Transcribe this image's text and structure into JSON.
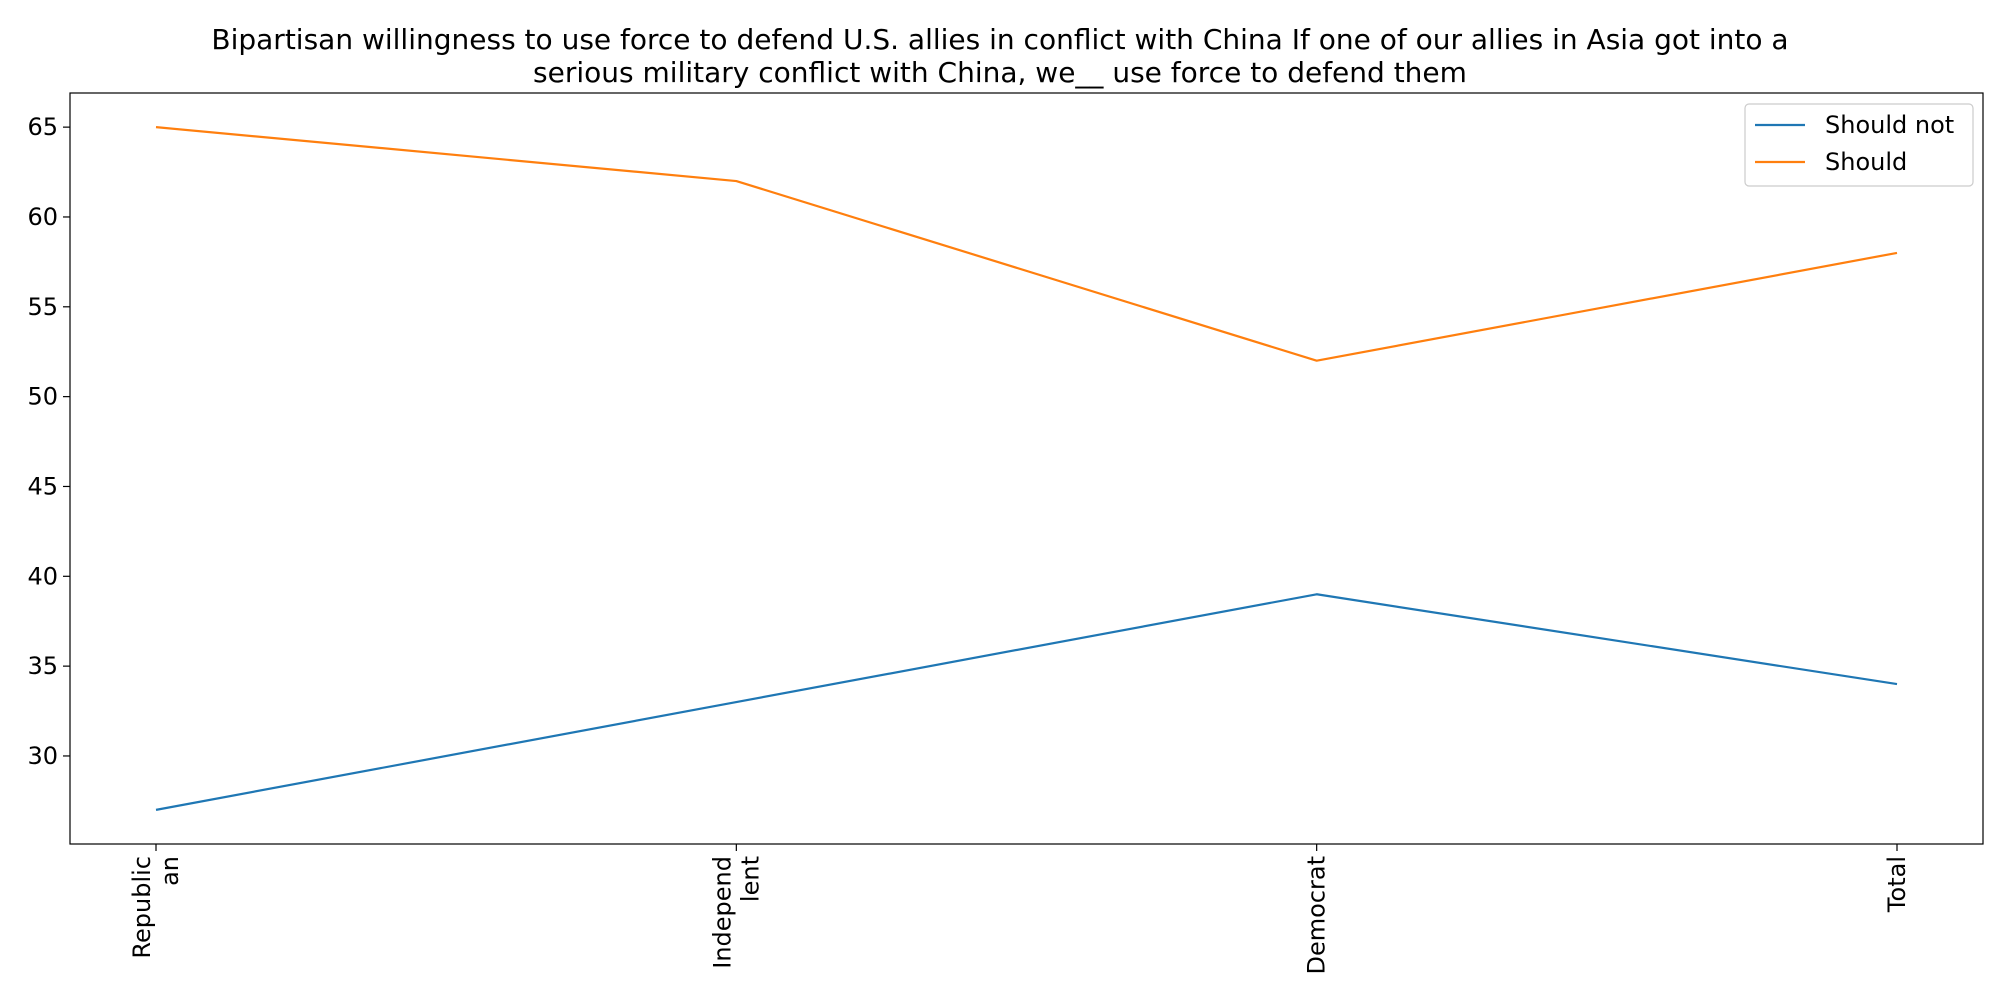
{
  "chart_data": {
    "type": "line",
    "title": "Bipartisan willingness to use force to defend U.S. allies in conflict with China If one of our allies in Asia got into a serious military conflict with China, we__ use force to defend them",
    "title_lines": [
      "Bipartisan willingness to use force to defend U.S. allies in conflict with China If one of our allies in Asia got into a",
      "serious military conflict with China, we__ use force to defend them"
    ],
    "xlabel": "",
    "ylabel": "",
    "categories": [
      "Republican",
      "Independent",
      "Democrat",
      "Total"
    ],
    "category_tick_lines": [
      [
        "Republic",
        "an"
      ],
      [
        "Independ",
        "lent"
      ],
      [
        "Democrat"
      ],
      [
        "Total"
      ]
    ],
    "series": [
      {
        "name": "Should not",
        "values": [
          27,
          33,
          39,
          34
        ],
        "color": "#1f77b4"
      },
      {
        "name": "Should",
        "values": [
          65,
          62,
          52,
          58
        ],
        "color": "#ff7f0e"
      }
    ],
    "ylim": [
      25.1,
      66.9
    ],
    "yticks": [
      30,
      35,
      40,
      45,
      50,
      55,
      60,
      65
    ],
    "grid": false,
    "legend_position": "top-right"
  }
}
